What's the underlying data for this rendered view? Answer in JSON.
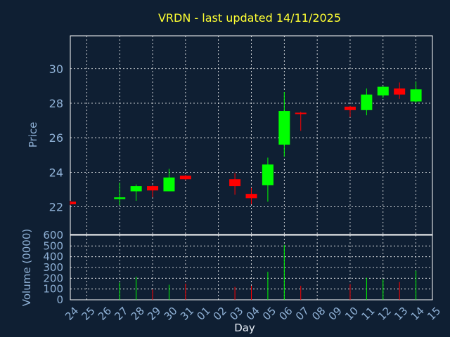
{
  "chart_data": {
    "type": "candlestick",
    "title": "VRDN - last updated 14/11/2025",
    "xlabel": "Day",
    "price_panel": {
      "ylabel": "Price",
      "ylim": [
        20.4,
        31.9
      ],
      "yticks": [
        22,
        24,
        26,
        28,
        30
      ]
    },
    "volume_panel": {
      "ylabel": "Volume (0000)",
      "ylim": [
        0,
        600
      ],
      "yticks": [
        0,
        100,
        200,
        300,
        400,
        500,
        600
      ]
    },
    "days": [
      "24",
      "25",
      "26",
      "27",
      "28",
      "29",
      "30",
      "31",
      "01",
      "02",
      "03",
      "04",
      "05",
      "06",
      "07",
      "08",
      "09",
      "10",
      "11",
      "12",
      "13",
      "14",
      "15"
    ],
    "candles": [
      {
        "day": "24",
        "open": 22.3,
        "high": 22.35,
        "low": 22.1,
        "close": 22.15,
        "volume": 0
      },
      {
        "day": "27",
        "open": 22.45,
        "high": 23.4,
        "low": 22.1,
        "close": 22.55,
        "volume": 160
      },
      {
        "day": "28",
        "open": 22.9,
        "high": 23.3,
        "low": 22.35,
        "close": 23.2,
        "volume": 215
      },
      {
        "day": "29",
        "open": 23.2,
        "high": 23.25,
        "low": 22.55,
        "close": 22.95,
        "volume": 95
      },
      {
        "day": "30",
        "open": 22.9,
        "high": 24.2,
        "low": 22.9,
        "close": 23.7,
        "volume": 140
      },
      {
        "day": "31",
        "open": 23.8,
        "high": 23.85,
        "low": 23.55,
        "close": 23.6,
        "volume": 150
      },
      {
        "day": "03",
        "open": 23.6,
        "high": 23.95,
        "low": 22.7,
        "close": 23.2,
        "volume": 120
      },
      {
        "day": "04",
        "open": 22.75,
        "high": 23.1,
        "low": 22.15,
        "close": 22.5,
        "volume": 130
      },
      {
        "day": "05",
        "open": 23.25,
        "high": 24.85,
        "low": 22.3,
        "close": 24.45,
        "volume": 260
      },
      {
        "day": "06",
        "open": 25.6,
        "high": 28.65,
        "low": 24.9,
        "close": 27.55,
        "volume": 510
      },
      {
        "day": "07",
        "open": 27.45,
        "high": 27.5,
        "low": 26.4,
        "close": 27.38,
        "volume": 130
      },
      {
        "day": "10",
        "open": 27.8,
        "high": 27.85,
        "low": 27.2,
        "close": 27.6,
        "volume": 145
      },
      {
        "day": "11",
        "open": 27.6,
        "high": 28.85,
        "low": 27.3,
        "close": 28.5,
        "volume": 205
      },
      {
        "day": "12",
        "open": 28.45,
        "high": 29.0,
        "low": 28.3,
        "close": 28.95,
        "volume": 190
      },
      {
        "day": "13",
        "open": 28.85,
        "high": 29.2,
        "low": 28.25,
        "close": 28.5,
        "volume": 165
      },
      {
        "day": "14",
        "open": 28.1,
        "high": 29.25,
        "low": 28.0,
        "close": 28.8,
        "volume": 270
      }
    ]
  },
  "colors": {
    "background": "#0f1f33",
    "up": "#00ff00",
    "down": "#ff0000",
    "grid": "#ffffff",
    "axis_text": "#8fb1d6",
    "title": "#ffff33"
  }
}
